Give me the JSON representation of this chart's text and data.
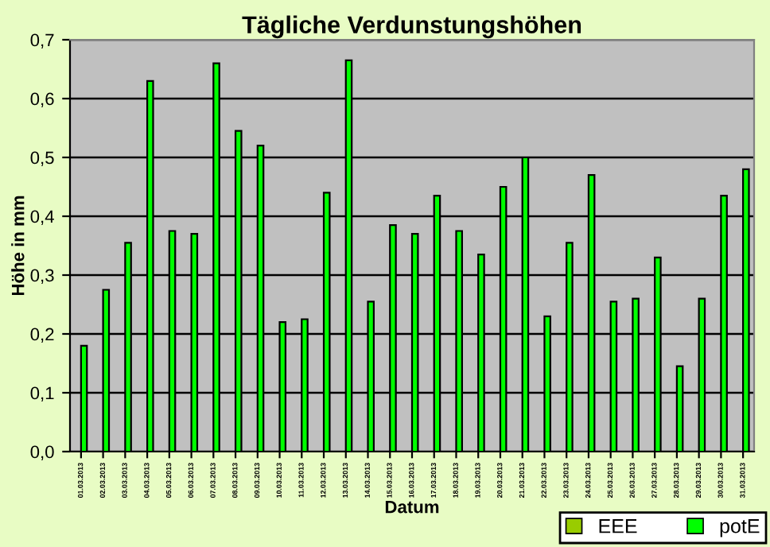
{
  "chart_data": {
    "type": "bar",
    "title": "Tägliche Verdunstungshöhen",
    "xlabel": "Datum",
    "ylabel": "Höhe in mm",
    "categories": [
      "01.03.2013",
      "02.03.2013",
      "03.03.2013",
      "04.03.2013",
      "05.03.2013",
      "06.03.2013",
      "07.03.2013",
      "08.03.2013",
      "09.03.2013",
      "10.03.2013",
      "11.03.2013",
      "12.03.2013",
      "13.03.2013",
      "14.03.2013",
      "15.03.2013",
      "16.03.2013",
      "17.03.2013",
      "18.03.2013",
      "19.03.2013",
      "20.03.2013",
      "21.03.2013",
      "22.03.2013",
      "23.03.2013",
      "24.03.2013",
      "25.03.2013",
      "26.03.2013",
      "27.03.2013",
      "28.03.2013",
      "29.03.2013",
      "30.03.2013",
      "31.03.2013"
    ],
    "series": [
      {
        "name": "EEE",
        "color": "#99cc00",
        "values": [
          null,
          null,
          null,
          null,
          null,
          null,
          null,
          null,
          null,
          null,
          null,
          null,
          null,
          null,
          null,
          null,
          null,
          null,
          null,
          null,
          null,
          null,
          null,
          null,
          null,
          null,
          null,
          null,
          null,
          null,
          null
        ]
      },
      {
        "name": "potE",
        "color": "#00ff00",
        "values": [
          0.18,
          0.275,
          0.355,
          0.63,
          0.375,
          0.37,
          0.66,
          0.545,
          0.52,
          0.22,
          0.225,
          0.44,
          0.665,
          0.255,
          0.385,
          0.37,
          0.435,
          0.375,
          0.335,
          0.45,
          0.5,
          0.23,
          0.355,
          0.47,
          0.255,
          0.26,
          0.33,
          0.145,
          0.26,
          0.435,
          0.48
        ]
      }
    ],
    "ylim": [
      0,
      0.7
    ],
    "yticks": [
      {
        "value": 0,
        "label": "0,0"
      },
      {
        "value": 0.1,
        "label": "0,1"
      },
      {
        "value": 0.2,
        "label": "0,2"
      },
      {
        "value": 0.3,
        "label": "0,3"
      },
      {
        "value": 0.4,
        "label": "0,4"
      },
      {
        "value": 0.5,
        "label": "0,5"
      },
      {
        "value": 0.6,
        "label": "0,6"
      },
      {
        "value": 0.7,
        "label": "0,7"
      }
    ],
    "grid": "y",
    "legend": "bottom right"
  }
}
